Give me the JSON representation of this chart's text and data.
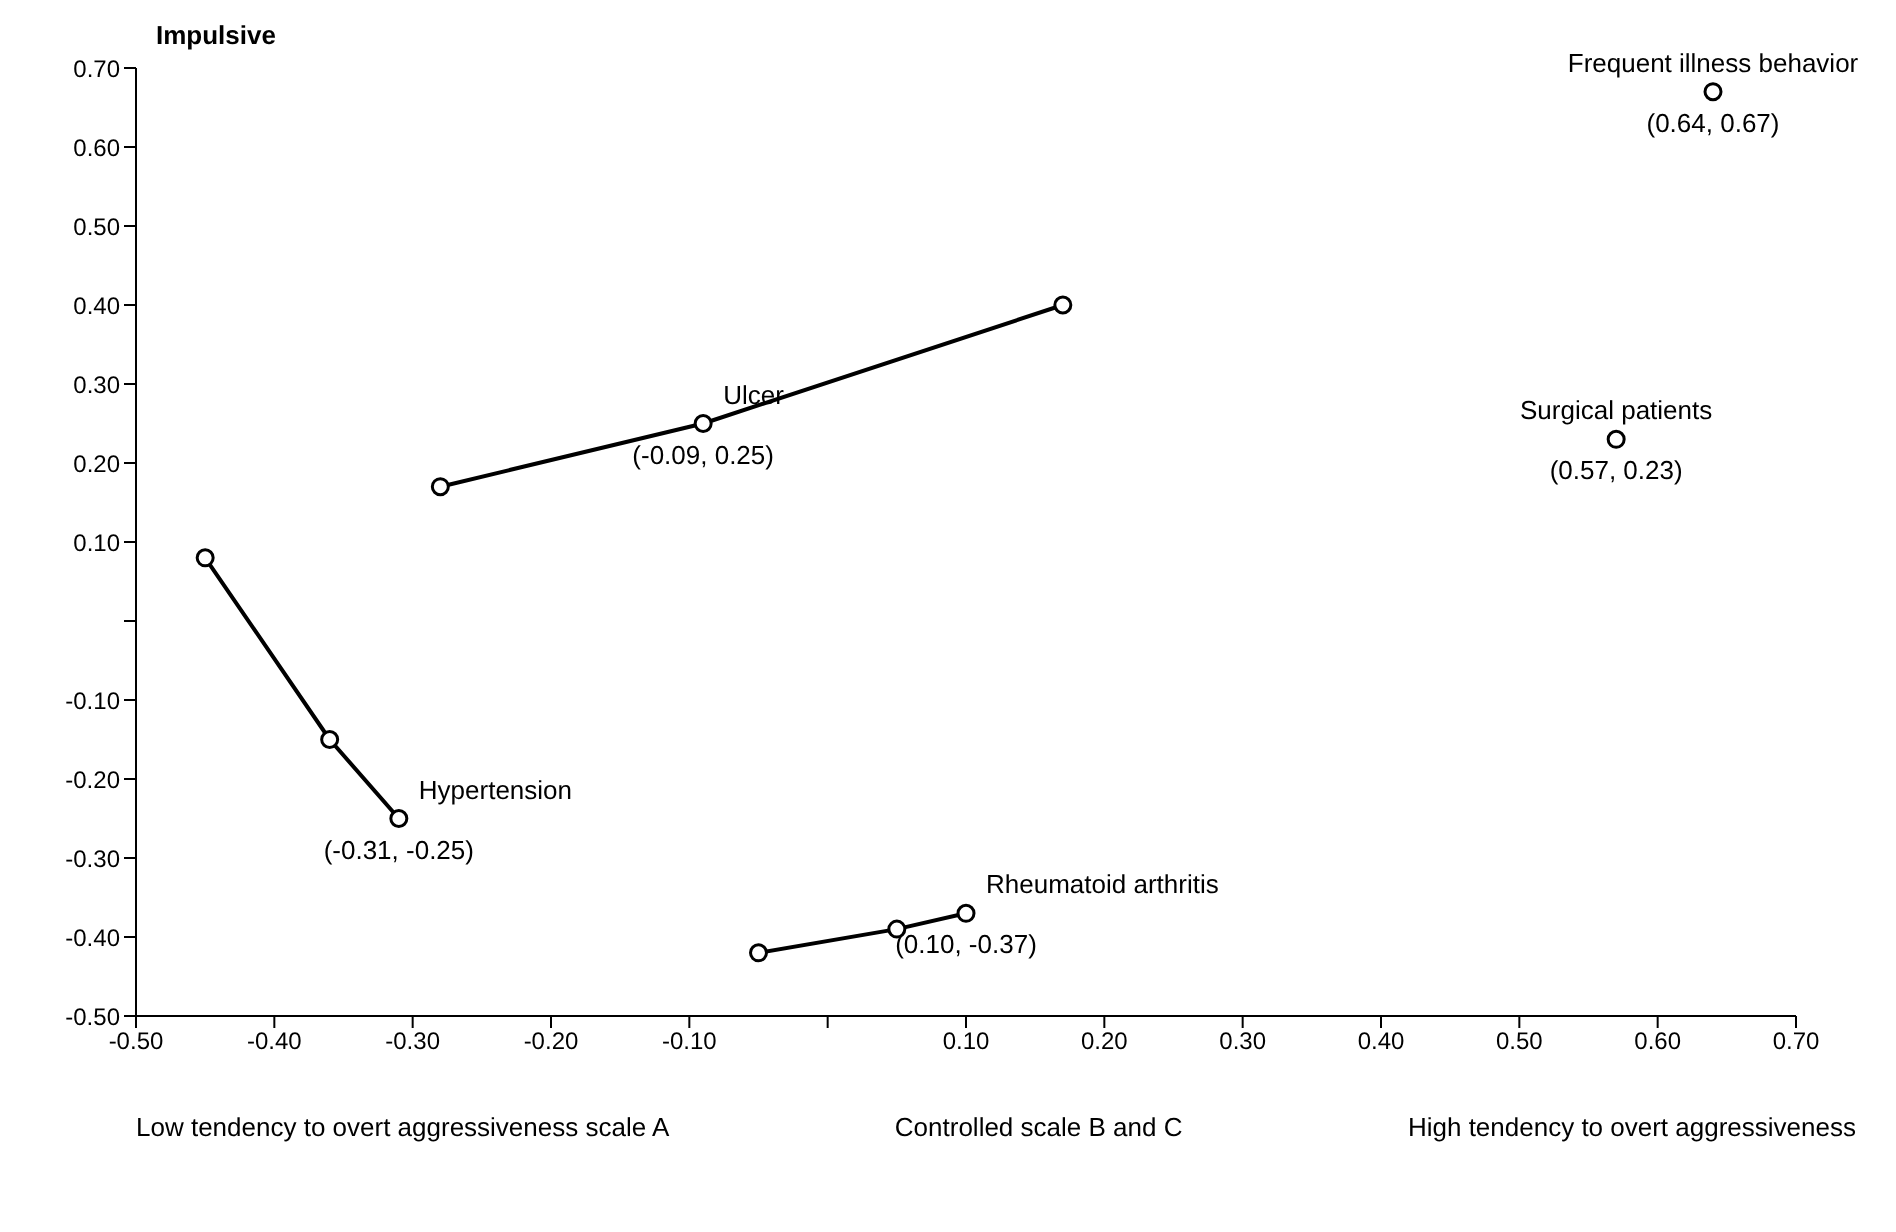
{
  "chart_data": {
    "type": "scatter",
    "xlabel": "High tendency to overt aggressiveness",
    "ylabel": "Impulsive",
    "annotations": [
      "Low tendency to overt aggressiveness scale A",
      "Controlled scale B and C"
    ],
    "xlim": [
      -0.5,
      0.7
    ],
    "ylim": [
      -0.5,
      0.7
    ],
    "xticks": [
      {
        "value": -0.5,
        "label": "-0.50"
      },
      {
        "value": -0.4,
        "label": "-0.40"
      },
      {
        "value": -0.3,
        "label": "-0.30"
      },
      {
        "value": -0.2,
        "label": "-0.20"
      },
      {
        "value": -0.1,
        "label": "-0.10"
      },
      {
        "value": 0,
        "label": null
      },
      {
        "value": 0.1,
        "label": "0.10"
      },
      {
        "value": 0.2,
        "label": "0.20"
      },
      {
        "value": 0.3,
        "label": "0.30"
      },
      {
        "value": 0.4,
        "label": "0.40"
      },
      {
        "value": 0.5,
        "label": "0.50"
      },
      {
        "value": 0.6,
        "label": "0.60"
      },
      {
        "value": 0.7,
        "label": "0.70"
      }
    ],
    "yticks": [
      {
        "value": -0.5,
        "label": "-0.50"
      },
      {
        "value": -0.4,
        "label": "-0.40"
      },
      {
        "value": -0.3,
        "label": "-0.30"
      },
      {
        "value": -0.2,
        "label": "-0.20"
      },
      {
        "value": -0.1,
        "label": "-0.10"
      },
      {
        "value": 0,
        "label": null
      },
      {
        "value": 0.1,
        "label": "0.10"
      },
      {
        "value": 0.2,
        "label": "0.20"
      },
      {
        "value": 0.3,
        "label": "0.30"
      },
      {
        "value": 0.4,
        "label": "0.40"
      },
      {
        "value": 0.5,
        "label": "0.50"
      },
      {
        "value": 0.6,
        "label": "0.60"
      },
      {
        "value": 0.7,
        "label": "0.70"
      }
    ],
    "marker": "circle",
    "line_style": "solid",
    "series": [
      {
        "name": "Frequent illness behavior",
        "type": "scatter",
        "color": "#000000",
        "x": [
          0.64
        ],
        "values": [
          0.67
        ],
        "value_labels": [
          "(0.64, 0.67)"
        ]
      },
      {
        "name": "Surgical patients",
        "type": "scatter",
        "color": "#000000",
        "x": [
          0.57
        ],
        "values": [
          0.23
        ],
        "value_labels": [
          "(0.57, 0.23)"
        ]
      },
      {
        "name": "Ulcer",
        "type": "line",
        "color": "#000000",
        "x": [
          -0.28,
          -0.09,
          0.17
        ],
        "values": [
          0.17,
          0.25,
          0.4
        ],
        "value_labels": [
          null,
          "(-0.09, 0.25)",
          null
        ]
      },
      {
        "name": "Hypertension",
        "type": "line",
        "color": "#000000",
        "x": [
          -0.45,
          -0.36,
          -0.31
        ],
        "values": [
          0.08,
          -0.15,
          -0.25
        ],
        "value_labels": [
          null,
          null,
          "(-0.31, -0.25)"
        ]
      },
      {
        "name": "Rheumatoid arthritis",
        "type": "line",
        "color": "#000000",
        "x": [
          -0.05,
          0.05,
          0.1
        ],
        "values": [
          -0.42,
          -0.39,
          -0.37
        ],
        "value_labels": [
          null,
          null,
          "(0.10, -0.37)"
        ]
      }
    ]
  }
}
